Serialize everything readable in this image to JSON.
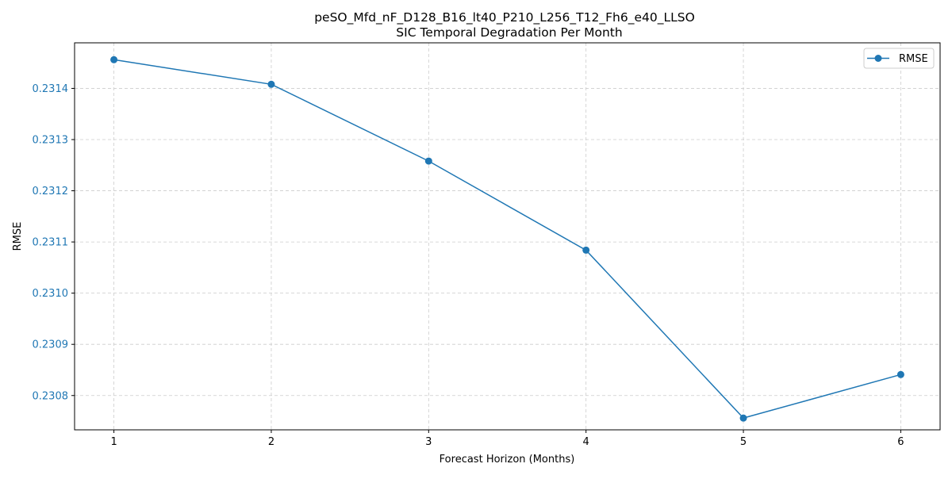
{
  "chart_data": {
    "type": "line",
    "title": "peSO_Mfd_nF_D128_B16_lt40_P210_L256_T12_Fh6_e40_LLSO",
    "subtitle": "SIC Temporal Degradation Per Month",
    "xlabel": "Forecast Horizon (Months)",
    "ylabel": "RMSE",
    "x": [
      1,
      2,
      3,
      4,
      5,
      6
    ],
    "series": [
      {
        "name": "RMSE",
        "values": [
          0.231456,
          0.231408,
          0.231258,
          0.231084,
          0.230756,
          0.230841
        ],
        "color": "#1f77b4"
      }
    ],
    "xlim": [
      0.75,
      6.25
    ],
    "ylim": [
      0.230733,
      0.231489
    ],
    "xticks": [
      "1",
      "2",
      "3",
      "4",
      "5",
      "6"
    ],
    "yticks": [
      "0.2308",
      "0.2309",
      "0.2310",
      "0.2311",
      "0.2312",
      "0.2313",
      "0.2314"
    ],
    "ytick_color": "#1f77b4",
    "grid": true,
    "legend_position": "top-right"
  }
}
